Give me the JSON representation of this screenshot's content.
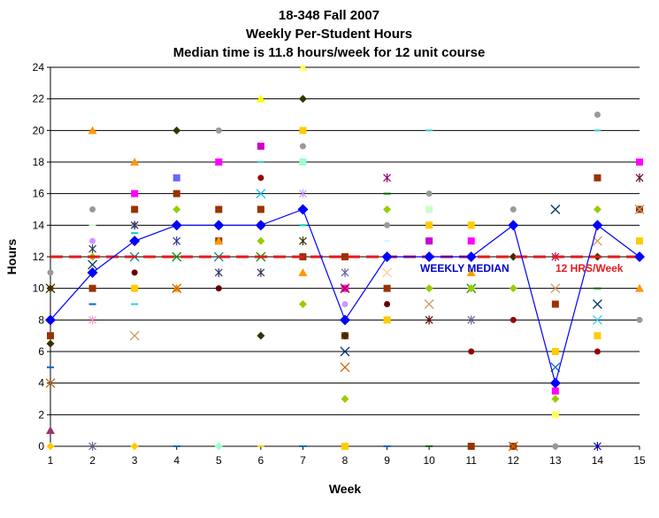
{
  "chart_data": {
    "type": "scatter",
    "title_lines": [
      "18-348 Fall 2007",
      "Weekly Per-Student Hours",
      "Median time is 11.8 hours/week for 12 unit course"
    ],
    "xlabel": "Week",
    "ylabel": "Hours",
    "xlim": [
      1,
      15
    ],
    "ylim": [
      0,
      24
    ],
    "x_ticks": [
      1,
      2,
      3,
      4,
      5,
      6,
      7,
      8,
      9,
      10,
      11,
      12,
      13,
      14,
      15
    ],
    "y_ticks": [
      0,
      2,
      4,
      6,
      8,
      10,
      12,
      14,
      16,
      18,
      20,
      22,
      24
    ],
    "grid": "horizontal",
    "legend": "none",
    "median_series": {
      "name": "WEEKLY MEDIAN",
      "color": "#0000ff",
      "x": [
        1,
        2,
        3,
        4,
        5,
        6,
        7,
        8,
        9,
        10,
        11,
        12,
        13,
        14,
        15
      ],
      "values": [
        8,
        11,
        13,
        14,
        14,
        14,
        15,
        8,
        12,
        12,
        12,
        14,
        4,
        14,
        12
      ]
    },
    "reference_line": {
      "label": "12 HRS/Week",
      "value": 12,
      "color": "#e31a1c"
    },
    "annotations": [
      {
        "text": "WEEKLY MEDIAN",
        "x": 10.3,
        "y": 11.2,
        "color": "#0000cc"
      },
      {
        "text": "12 HRS/Week",
        "x": 14.2,
        "y": 11.2,
        "color": "#e31a1c"
      }
    ],
    "student_points": [
      {
        "x": 1,
        "y": 11,
        "c": "#999999",
        "s": "circle"
      },
      {
        "x": 1,
        "y": 10,
        "c": "#663300",
        "s": "diamond"
      },
      {
        "x": 1,
        "y": 10,
        "c": "#333300",
        "s": "cross"
      },
      {
        "x": 1,
        "y": 7,
        "c": "#993300",
        "s": "square"
      },
      {
        "x": 1,
        "y": 6.5,
        "c": "#333300",
        "s": "diamond"
      },
      {
        "x": 1,
        "y": 5,
        "c": "#0066cc",
        "s": "dash"
      },
      {
        "x": 1,
        "y": 4,
        "c": "#cc6600",
        "s": "cross"
      },
      {
        "x": 1,
        "y": 1,
        "c": "#993366",
        "s": "triangle"
      },
      {
        "x": 1,
        "y": 0,
        "c": "#ffcc00",
        "s": "diamond"
      },
      {
        "x": 2,
        "y": 20,
        "c": "#ff9900",
        "s": "triangle"
      },
      {
        "x": 2,
        "y": 15,
        "c": "#999999",
        "s": "circle"
      },
      {
        "x": 2,
        "y": 14,
        "c": "#ccffcc",
        "s": "dash"
      },
      {
        "x": 2,
        "y": 13,
        "c": "#cc99ff",
        "s": "circle"
      },
      {
        "x": 2,
        "y": 12.5,
        "c": "#333366",
        "s": "star"
      },
      {
        "x": 2,
        "y": 12,
        "c": "#99cc00",
        "s": "diamond"
      },
      {
        "x": 2,
        "y": 11.5,
        "c": "#003366",
        "s": "cross"
      },
      {
        "x": 2,
        "y": 10,
        "c": "#993300",
        "s": "square"
      },
      {
        "x": 2,
        "y": 9,
        "c": "#0066cc",
        "s": "dash"
      },
      {
        "x": 2,
        "y": 8,
        "c": "#ff99cc",
        "s": "star"
      },
      {
        "x": 2,
        "y": 0,
        "c": "#666699",
        "s": "star"
      },
      {
        "x": 3,
        "y": 18,
        "c": "#ff9900",
        "s": "triangle"
      },
      {
        "x": 3,
        "y": 16,
        "c": "#ff00ff",
        "s": "square"
      },
      {
        "x": 3,
        "y": 15,
        "c": "#993300",
        "s": "square"
      },
      {
        "x": 3,
        "y": 14,
        "c": "#999999",
        "s": "circle"
      },
      {
        "x": 3,
        "y": 14,
        "c": "#333366",
        "s": "star"
      },
      {
        "x": 3,
        "y": 13.5,
        "c": "#00cccc",
        "s": "dash"
      },
      {
        "x": 3,
        "y": 12,
        "c": "#009999",
        "s": "cross"
      },
      {
        "x": 3,
        "y": 11,
        "c": "#660000",
        "s": "circle"
      },
      {
        "x": 3,
        "y": 10,
        "c": "#ffcc00",
        "s": "square"
      },
      {
        "x": 3,
        "y": 9,
        "c": "#33cccc",
        "s": "dash"
      },
      {
        "x": 3,
        "y": 7,
        "c": "#cc9966",
        "s": "cross"
      },
      {
        "x": 3,
        "y": 0,
        "c": "#ffcc00",
        "s": "diamond"
      },
      {
        "x": 4,
        "y": 20,
        "c": "#333300",
        "s": "diamond"
      },
      {
        "x": 4,
        "y": 17,
        "c": "#6666ff",
        "s": "square"
      },
      {
        "x": 4,
        "y": 16,
        "c": "#993300",
        "s": "square"
      },
      {
        "x": 4,
        "y": 15,
        "c": "#99cc00",
        "s": "diamond"
      },
      {
        "x": 4,
        "y": 13,
        "c": "#333399",
        "s": "star"
      },
      {
        "x": 4,
        "y": 12,
        "c": "#009900",
        "s": "cross"
      },
      {
        "x": 4,
        "y": 10,
        "c": "#ff9900",
        "s": "triangle"
      },
      {
        "x": 4,
        "y": 10,
        "c": "#cc6600",
        "s": "cross"
      },
      {
        "x": 4,
        "y": 0,
        "c": "#0066cc",
        "s": "dash"
      },
      {
        "x": 5,
        "y": 20,
        "c": "#999999",
        "s": "circle"
      },
      {
        "x": 5,
        "y": 18,
        "c": "#ff00ff",
        "s": "square"
      },
      {
        "x": 5,
        "y": 15,
        "c": "#993300",
        "s": "square"
      },
      {
        "x": 5,
        "y": 14,
        "c": "#ccffcc",
        "s": "square"
      },
      {
        "x": 5,
        "y": 13,
        "c": "#993300",
        "s": "square"
      },
      {
        "x": 5,
        "y": 13,
        "c": "#ff9900",
        "s": "triangle"
      },
      {
        "x": 5,
        "y": 12,
        "c": "#009999",
        "s": "cross"
      },
      {
        "x": 5,
        "y": 11,
        "c": "#333366",
        "s": "star"
      },
      {
        "x": 5,
        "y": 10,
        "c": "#660000",
        "s": "circle"
      },
      {
        "x": 5,
        "y": 0,
        "c": "#99ffcc",
        "s": "diamond"
      },
      {
        "x": 6,
        "y": 22,
        "c": "#ffff00",
        "s": "triangle"
      },
      {
        "x": 6,
        "y": 19,
        "c": "#cc00cc",
        "s": "square"
      },
      {
        "x": 6,
        "y": 18,
        "c": "#33cccc",
        "s": "dash"
      },
      {
        "x": 6,
        "y": 17,
        "c": "#990000",
        "s": "circle"
      },
      {
        "x": 6,
        "y": 16,
        "c": "#00ccff",
        "s": "cross"
      },
      {
        "x": 6,
        "y": 15,
        "c": "#993300",
        "s": "square"
      },
      {
        "x": 6,
        "y": 14,
        "c": "#ffcc00",
        "s": "square"
      },
      {
        "x": 6,
        "y": 13,
        "c": "#99cc00",
        "s": "diamond"
      },
      {
        "x": 6,
        "y": 12,
        "c": "#009900",
        "s": "cross"
      },
      {
        "x": 6,
        "y": 11,
        "c": "#333366",
        "s": "star"
      },
      {
        "x": 6,
        "y": 7,
        "c": "#333300",
        "s": "diamond"
      },
      {
        "x": 6,
        "y": 0,
        "c": "#ffcc00",
        "s": "dash"
      },
      {
        "x": 7,
        "y": 24,
        "c": "#ffff66",
        "s": "triangle"
      },
      {
        "x": 7,
        "y": 22,
        "c": "#333300",
        "s": "diamond"
      },
      {
        "x": 7,
        "y": 20,
        "c": "#ffcc00",
        "s": "square"
      },
      {
        "x": 7,
        "y": 19,
        "c": "#999999",
        "s": "circle"
      },
      {
        "x": 7,
        "y": 18,
        "c": "#99ffcc",
        "s": "square"
      },
      {
        "x": 7,
        "y": 16,
        "c": "#cc99ff",
        "s": "star"
      },
      {
        "x": 7,
        "y": 14,
        "c": "#00cccc",
        "s": "dash"
      },
      {
        "x": 7,
        "y": 13,
        "c": "#333300",
        "s": "star"
      },
      {
        "x": 7,
        "y": 12,
        "c": "#993300",
        "s": "square"
      },
      {
        "x": 7,
        "y": 11,
        "c": "#ff9900",
        "s": "triangle"
      },
      {
        "x": 7,
        "y": 9,
        "c": "#99cc00",
        "s": "diamond"
      },
      {
        "x": 7,
        "y": 0,
        "c": "#0066cc",
        "s": "dash"
      },
      {
        "x": 8,
        "y": 12,
        "c": "#993300",
        "s": "square"
      },
      {
        "x": 8,
        "y": 11,
        "c": "#666699",
        "s": "star"
      },
      {
        "x": 8,
        "y": 10,
        "c": "#ff00ff",
        "s": "square"
      },
      {
        "x": 8,
        "y": 10,
        "c": "#990000",
        "s": "cross"
      },
      {
        "x": 8,
        "y": 9,
        "c": "#cc99ff",
        "s": "circle"
      },
      {
        "x": 8,
        "y": 7,
        "c": "#993300",
        "s": "square"
      },
      {
        "x": 8,
        "y": 7,
        "c": "#333300",
        "s": "diamond"
      },
      {
        "x": 8,
        "y": 6,
        "c": "#003366",
        "s": "cross"
      },
      {
        "x": 8,
        "y": 5,
        "c": "#cc6600",
        "s": "cross"
      },
      {
        "x": 8,
        "y": 3,
        "c": "#99cc00",
        "s": "diamond"
      },
      {
        "x": 8,
        "y": 0,
        "c": "#ffcc00",
        "s": "square"
      },
      {
        "x": 9,
        "y": 17,
        "c": "#990066",
        "s": "star"
      },
      {
        "x": 9,
        "y": 16,
        "c": "#006600",
        "s": "dash"
      },
      {
        "x": 9,
        "y": 15,
        "c": "#99cc00",
        "s": "diamond"
      },
      {
        "x": 9,
        "y": 14,
        "c": "#999999",
        "s": "circle"
      },
      {
        "x": 9,
        "y": 13,
        "c": "#ccffff",
        "s": "dash"
      },
      {
        "x": 9,
        "y": 11,
        "c": "#ffcc99",
        "s": "cross"
      },
      {
        "x": 9,
        "y": 10,
        "c": "#993300",
        "s": "square"
      },
      {
        "x": 9,
        "y": 9,
        "c": "#660000",
        "s": "circle"
      },
      {
        "x": 9,
        "y": 8,
        "c": "#ffcc00",
        "s": "square"
      },
      {
        "x": 9,
        "y": 0,
        "c": "#0066cc",
        "s": "dash"
      },
      {
        "x": 10,
        "y": 20,
        "c": "#33cccc",
        "s": "dash"
      },
      {
        "x": 10,
        "y": 16,
        "c": "#999999",
        "s": "circle"
      },
      {
        "x": 10,
        "y": 15,
        "c": "#ccffcc",
        "s": "square"
      },
      {
        "x": 10,
        "y": 14,
        "c": "#ffcc00",
        "s": "square"
      },
      {
        "x": 10,
        "y": 13,
        "c": "#cc00cc",
        "s": "square"
      },
      {
        "x": 10,
        "y": 10,
        "c": "#99cc00",
        "s": "diamond"
      },
      {
        "x": 10,
        "y": 9,
        "c": "#cc9966",
        "s": "cross"
      },
      {
        "x": 10,
        "y": 8,
        "c": "#660000",
        "s": "star"
      },
      {
        "x": 10,
        "y": 0,
        "c": "#006600",
        "s": "dash"
      },
      {
        "x": 11,
        "y": 14,
        "c": "#ffcc00",
        "s": "square"
      },
      {
        "x": 11,
        "y": 13,
        "c": "#ff00ff",
        "s": "square"
      },
      {
        "x": 11,
        "y": 11,
        "c": "#ff9900",
        "s": "triangle"
      },
      {
        "x": 11,
        "y": 10,
        "c": "#009900",
        "s": "cross"
      },
      {
        "x": 11,
        "y": 10,
        "c": "#99cc00",
        "s": "diamond"
      },
      {
        "x": 11,
        "y": 8,
        "c": "#666699",
        "s": "star"
      },
      {
        "x": 11,
        "y": 6,
        "c": "#990000",
        "s": "circle"
      },
      {
        "x": 11,
        "y": 0,
        "c": "#993300",
        "s": "square"
      },
      {
        "x": 12,
        "y": 15,
        "c": "#999999",
        "s": "circle"
      },
      {
        "x": 12,
        "y": 12,
        "c": "#333300",
        "s": "diamond"
      },
      {
        "x": 12,
        "y": 10,
        "c": "#99cc00",
        "s": "diamond"
      },
      {
        "x": 12,
        "y": 8,
        "c": "#990000",
        "s": "circle"
      },
      {
        "x": 12,
        "y": 0,
        "c": "#993300",
        "s": "square"
      },
      {
        "x": 12,
        "y": 0,
        "c": "#cc6600",
        "s": "cross"
      },
      {
        "x": 13,
        "y": 15,
        "c": "#003366",
        "s": "cross"
      },
      {
        "x": 13,
        "y": 12,
        "c": "#990066",
        "s": "star"
      },
      {
        "x": 13,
        "y": 10,
        "c": "#cc9966",
        "s": "cross"
      },
      {
        "x": 13,
        "y": 9,
        "c": "#993300",
        "s": "square"
      },
      {
        "x": 13,
        "y": 6,
        "c": "#ffcc00",
        "s": "square"
      },
      {
        "x": 13,
        "y": 5,
        "c": "#0066cc",
        "s": "cross"
      },
      {
        "x": 13,
        "y": 3.5,
        "c": "#ff00ff",
        "s": "square"
      },
      {
        "x": 13,
        "y": 3,
        "c": "#99cc00",
        "s": "diamond"
      },
      {
        "x": 13,
        "y": 2,
        "c": "#ffff66",
        "s": "square"
      },
      {
        "x": 13,
        "y": 0,
        "c": "#999999",
        "s": "circle"
      },
      {
        "x": 14,
        "y": 21,
        "c": "#999999",
        "s": "circle"
      },
      {
        "x": 14,
        "y": 20,
        "c": "#33cccc",
        "s": "dash"
      },
      {
        "x": 14,
        "y": 17,
        "c": "#993300",
        "s": "square"
      },
      {
        "x": 14,
        "y": 15,
        "c": "#99cc00",
        "s": "diamond"
      },
      {
        "x": 14,
        "y": 13,
        "c": "#cc9966",
        "s": "cross"
      },
      {
        "x": 14,
        "y": 12,
        "c": "#333300",
        "s": "diamond"
      },
      {
        "x": 14,
        "y": 10,
        "c": "#006600",
        "s": "dash"
      },
      {
        "x": 14,
        "y": 9,
        "c": "#003366",
        "s": "cross"
      },
      {
        "x": 14,
        "y": 8,
        "c": "#33ccff",
        "s": "cross"
      },
      {
        "x": 14,
        "y": 7,
        "c": "#ffcc00",
        "s": "square"
      },
      {
        "x": 14,
        "y": 6,
        "c": "#990000",
        "s": "circle"
      },
      {
        "x": 14,
        "y": 0,
        "c": "#0000cc",
        "s": "star"
      },
      {
        "x": 15,
        "y": 18,
        "c": "#ff00ff",
        "s": "square"
      },
      {
        "x": 15,
        "y": 17,
        "c": "#660033",
        "s": "star"
      },
      {
        "x": 15,
        "y": 15,
        "c": "#993300",
        "s": "square"
      },
      {
        "x": 15,
        "y": 15,
        "c": "#cc9966",
        "s": "cross"
      },
      {
        "x": 15,
        "y": 13,
        "c": "#ffcc00",
        "s": "square"
      },
      {
        "x": 15,
        "y": 10,
        "c": "#ff9900",
        "s": "triangle"
      },
      {
        "x": 15,
        "y": 8,
        "c": "#999999",
        "s": "circle"
      }
    ]
  }
}
